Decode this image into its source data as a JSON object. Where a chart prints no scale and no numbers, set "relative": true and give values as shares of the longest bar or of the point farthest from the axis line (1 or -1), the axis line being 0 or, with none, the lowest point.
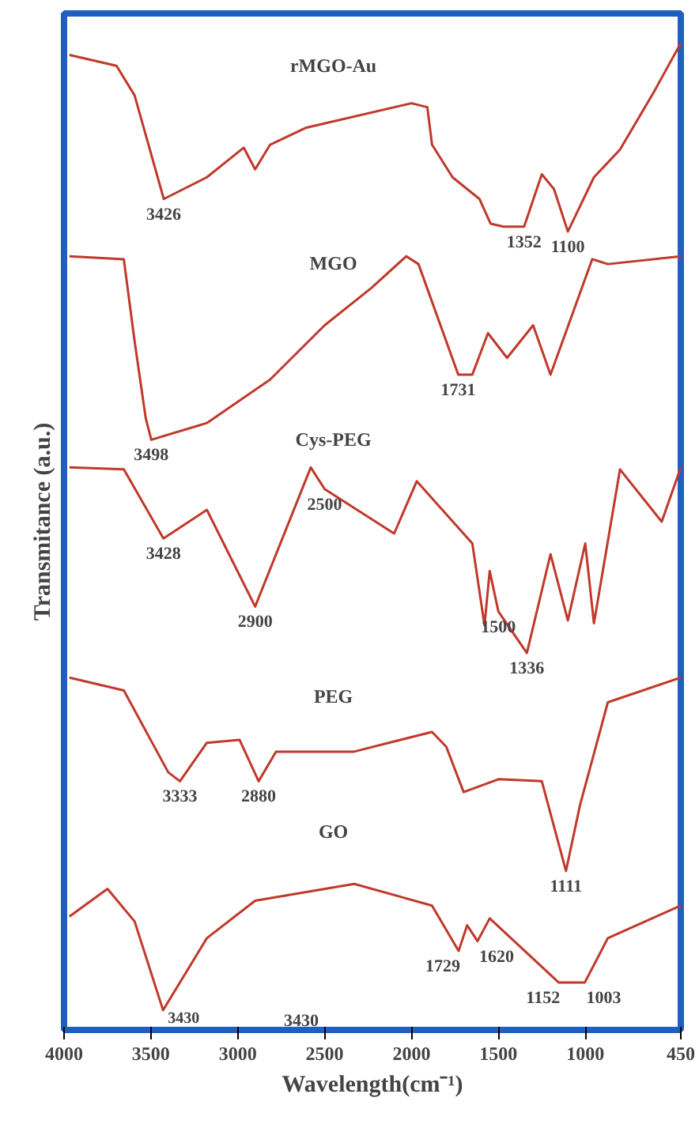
{
  "chart_data": {
    "type": "line",
    "relative": true,
    "xlabel": "Wavelength(cm⁻¹)",
    "ylabel": "Transmitance (a.u.)",
    "xlim": [
      4000,
      450
    ],
    "xticks": [
      4000,
      3500,
      3000,
      2500,
      2000,
      1500,
      1000,
      450
    ],
    "grid": false,
    "line_style": "solid",
    "marker": "none",
    "series": [
      {
        "name": "rMGO-Au",
        "color": "#c0392b",
        "x": [
          3969,
          3698,
          3594,
          3426,
          3178,
          2966,
          2900,
          2814,
          2610,
          2000,
          1909,
          1882,
          1764,
          1609,
          1545,
          1470,
          1352,
          1250,
          1180,
          1100,
          950,
          800,
          600,
          450
        ],
        "values": [
          0.988,
          0.977,
          0.947,
          0.842,
          0.864,
          0.894,
          0.872,
          0.897,
          0.914,
          0.939,
          0.935,
          0.897,
          0.864,
          0.842,
          0.817,
          0.814,
          0.814,
          0.867,
          0.852,
          0.809,
          0.864,
          0.892,
          0.952,
          1.0
        ]
      },
      {
        "name": "MGO",
        "color": "#c0392b",
        "x": [
          3969,
          3656,
          3594,
          3530,
          3498,
          3178,
          2814,
          2500,
          2230,
          2030,
          1960,
          1731,
          1650,
          1560,
          1450,
          1300,
          1200,
          960,
          870,
          450
        ],
        "values": [
          0.784,
          0.781,
          0.698,
          0.62,
          0.598,
          0.615,
          0.659,
          0.714,
          0.752,
          0.784,
          0.776,
          0.664,
          0.664,
          0.706,
          0.681,
          0.714,
          0.664,
          0.781,
          0.776,
          0.784
        ]
      },
      {
        "name": "Cys-PEG",
        "color": "#c0392b",
        "x": [
          3969,
          3656,
          3428,
          3178,
          2900,
          2580,
          2500,
          2100,
          1970,
          1650,
          1580,
          1550,
          1500,
          1336,
          1200,
          1100,
          1000,
          950,
          800,
          560,
          450
        ],
        "values": [
          0.57,
          0.568,
          0.498,
          0.527,
          0.429,
          0.57,
          0.548,
          0.503,
          0.556,
          0.493,
          0.41,
          0.465,
          0.424,
          0.382,
          0.482,
          0.415,
          0.493,
          0.412,
          0.568,
          0.515,
          0.57
        ]
      },
      {
        "name": "PEG",
        "color": "#c0392b",
        "x": [
          3969,
          3656,
          3400,
          3333,
          3178,
          2990,
          2880,
          2780,
          2330,
          1882,
          1800,
          1700,
          1500,
          1250,
          1111,
          1030,
          870,
          450
        ],
        "values": [
          0.357,
          0.344,
          0.261,
          0.252,
          0.291,
          0.294,
          0.252,
          0.282,
          0.282,
          0.302,
          0.287,
          0.241,
          0.254,
          0.252,
          0.161,
          0.228,
          0.332,
          0.357
        ]
      },
      {
        "name": "GO",
        "color": "#c0392b",
        "x": [
          3969,
          3750,
          3594,
          3430,
          3178,
          2900,
          2330,
          1882,
          1729,
          1680,
          1620,
          1550,
          1152,
          1003,
          870,
          450
        ],
        "values": [
          0.115,
          0.143,
          0.11,
          0.02,
          0.093,
          0.131,
          0.148,
          0.126,
          0.08,
          0.106,
          0.09,
          0.113,
          0.048,
          0.048,
          0.093,
          0.126
        ]
      }
    ],
    "annotations": [
      {
        "text": "3426",
        "x": 3426,
        "y": 0.842
      },
      {
        "text": "1352",
        "x": 1352,
        "y": 0.814
      },
      {
        "text": "1100",
        "x": 1100,
        "y": 0.809
      },
      {
        "text": "3498",
        "x": 3498,
        "y": 0.598
      },
      {
        "text": "1731",
        "x": 1731,
        "y": 0.664
      },
      {
        "text": "3428",
        "x": 3428,
        "y": 0.498
      },
      {
        "text": "2900",
        "x": 2900,
        "y": 0.429
      },
      {
        "text": "2500",
        "x": 2500,
        "y": 0.548
      },
      {
        "text": "1500",
        "x": 1500,
        "y": 0.424
      },
      {
        "text": "1336",
        "x": 1336,
        "y": 0.382
      },
      {
        "text": "3333",
        "x": 3333,
        "y": 0.252
      },
      {
        "text": "2880",
        "x": 2880,
        "y": 0.252
      },
      {
        "text": "1111",
        "x": 1111,
        "y": 0.161
      },
      {
        "text": "3430",
        "x": 3430,
        "y": 0.02
      },
      "3430",
      {
        "text": "1729",
        "x": 1729,
        "y": 0.08
      },
      {
        "text": "1620",
        "x": 1620,
        "y": 0.09
      },
      {
        "text": "1152",
        "x": 1152,
        "y": 0.048
      },
      {
        "text": "1003",
        "x": 1003,
        "y": 0.048
      }
    ]
  }
}
